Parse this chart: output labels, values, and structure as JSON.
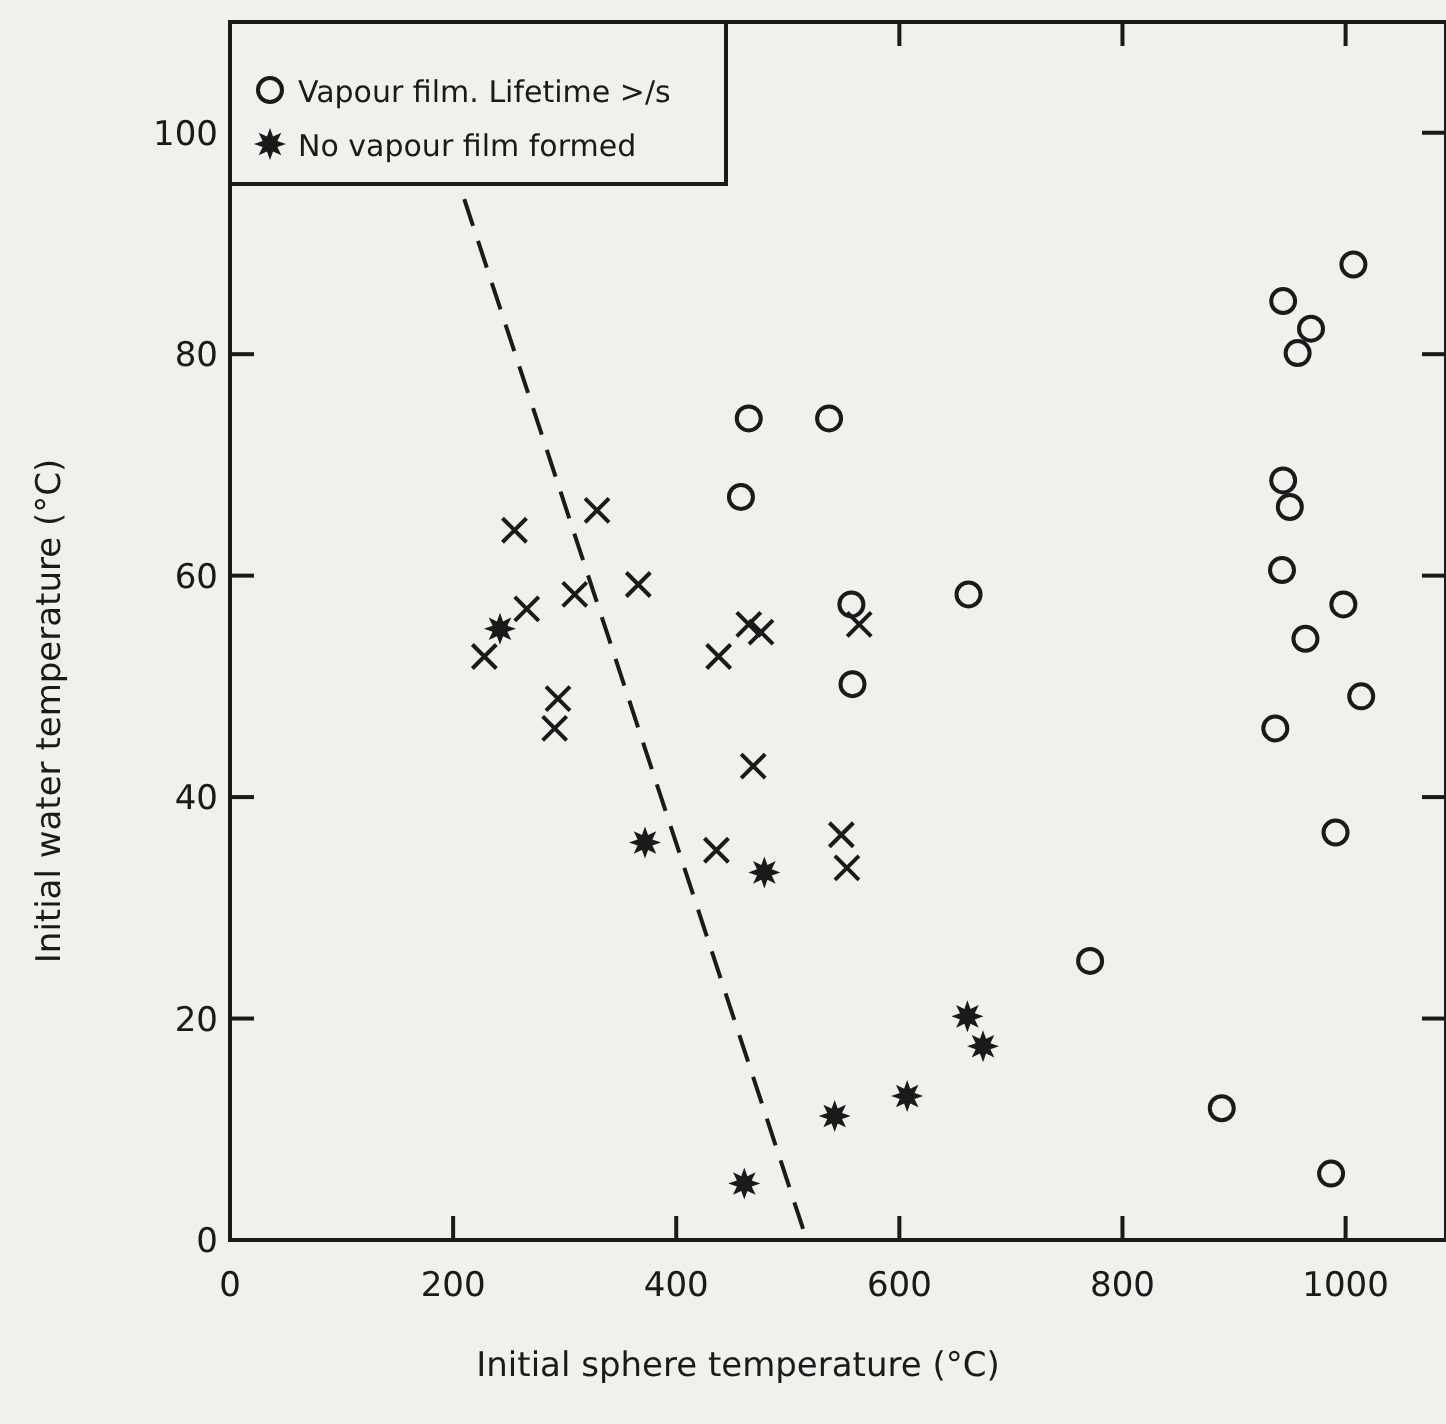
{
  "chart_data": {
    "type": "scatter",
    "xlabel": "Initial sphere temperature (°C)",
    "ylabel": "Initial water temperature (°C)",
    "xlim": [
      0,
      1090
    ],
    "ylim": [
      0,
      110
    ],
    "xticks": [
      0,
      200,
      400,
      600,
      800,
      1000
    ],
    "yticks": [
      0,
      20,
      40,
      60,
      80,
      100
    ],
    "grid": false,
    "legend": "top left",
    "series": [
      {
        "name": "Vapour film. Lifetime >/s",
        "color": "#1a1a1a",
        "marker": "circle",
        "x": [
          465,
          537,
          458,
          557,
          662,
          558,
          944,
          969,
          957,
          1007,
          944,
          950,
          943,
          998,
          964,
          1014,
          937,
          991,
          771,
          889,
          987
        ],
        "values": [
          74.2,
          74.2,
          67.1,
          57.4,
          58.3,
          50.2,
          84.8,
          82.3,
          80.1,
          88.1,
          68.6,
          66.2,
          60.5,
          57.4,
          54.3,
          49.1,
          46.2,
          36.8,
          25.2,
          11.9,
          6.0
        ]
      },
      {
        "name": "No vapour film formed",
        "color": "#1a1a1a",
        "marker": "star",
        "x": [
          242,
          372,
          479,
          461,
          542,
          607,
          661,
          675
        ],
        "values": [
          55.2,
          35.9,
          33.2,
          5.1,
          11.2,
          13.0,
          20.2,
          17.5
        ]
      },
      {
        "color": "#1a1a1a",
        "marker": "cross",
        "x": [
          255,
          329,
          266,
          309,
          366,
          228,
          294,
          291,
          465,
          476,
          438,
          469,
          436,
          548,
          553,
          564
        ],
        "values": [
          64.1,
          65.9,
          57.0,
          58.3,
          59.2,
          52.7,
          48.9,
          46.2,
          55.6,
          54.9,
          52.7,
          42.8,
          35.2,
          36.6,
          33.6,
          55.6
        ]
      },
      {
        "type": "line",
        "color": "#1a1a1a",
        "marker": "none",
        "line_style": "dashed",
        "x": [
          210,
          517
        ],
        "values": [
          94,
          0
        ]
      }
    ]
  }
}
